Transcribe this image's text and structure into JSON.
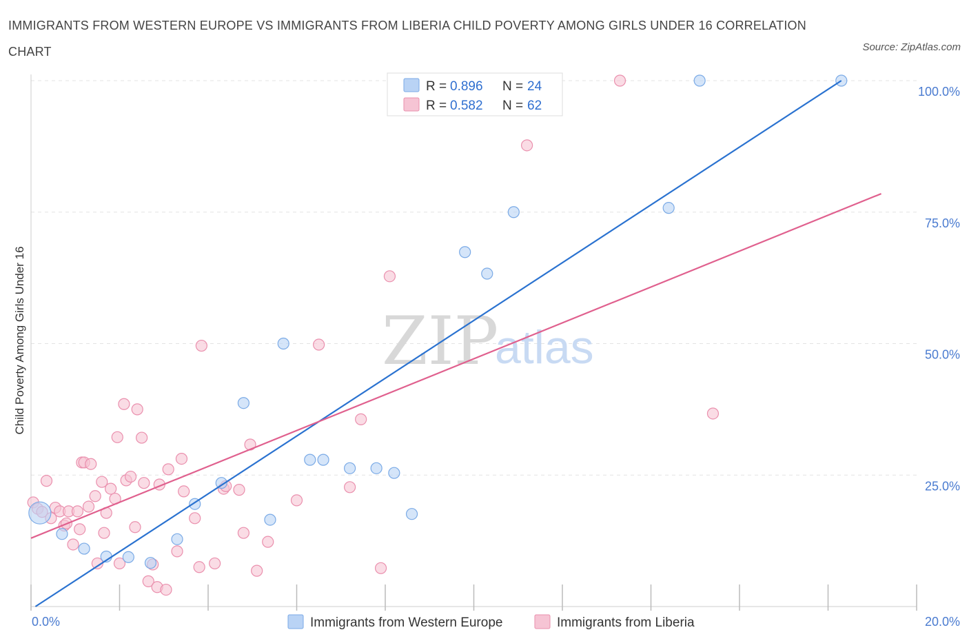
{
  "title": "IMMIGRANTS FROM WESTERN EUROPE VS IMMIGRANTS FROM LIBERIA CHILD POVERTY AMONG GIRLS UNDER 16 CORRELATION CHART",
  "source": "Source: ZipAtlas.com",
  "watermark": {
    "zip": "ZIP",
    "atlas": "atlas"
  },
  "legend_box": [
    {
      "r_label": "R =",
      "r_value": "0.896",
      "n_label": "N =",
      "n_value": "24"
    },
    {
      "r_label": "R =",
      "r_value": "0.582",
      "n_label": "N =",
      "n_value": "62"
    }
  ],
  "colors": {
    "blue_fill": "#b9d3f5",
    "blue_stroke": "#7aaae6",
    "blue_line": "#2a72d0",
    "pink_fill": "#f6c4d4",
    "pink_stroke": "#ea8fad",
    "pink_line": "#e0608e",
    "grid": "#e3e3e3",
    "tick_text": "#4a7bd0"
  },
  "chart_data": {
    "type": "scatter",
    "title": "IMMIGRANTS FROM WESTERN EUROPE VS IMMIGRANTS FROM LIBERIA CHILD POVERTY AMONG GIRLS UNDER 16 CORRELATION CHART",
    "xlabel": "",
    "ylabel": "Child Poverty Among Girls Under 16",
    "xlim": [
      0,
      20
    ],
    "ylim": [
      0,
      100
    ],
    "x_tick_labels": [
      "0.0%",
      "20.0%"
    ],
    "y_tick_labels": [
      "25.0%",
      "50.0%",
      "75.0%",
      "100.0%"
    ],
    "y_ticks": [
      25,
      50,
      75,
      100
    ],
    "grid": true,
    "legend_position": "bottom",
    "series": [
      {
        "name": "Immigrants from Western Europe",
        "color": "#7aaae6",
        "R": 0.896,
        "N": 24,
        "trend": {
          "x": [
            0.1,
            18.3
          ],
          "y": [
            0,
            100
          ]
        },
        "points": [
          {
            "x": 0.2,
            "y": 17.8,
            "big": true
          },
          {
            "x": 0.7,
            "y": 13.8
          },
          {
            "x": 1.2,
            "y": 11.0
          },
          {
            "x": 1.7,
            "y": 9.5
          },
          {
            "x": 2.2,
            "y": 9.4
          },
          {
            "x": 2.7,
            "y": 8.3
          },
          {
            "x": 3.3,
            "y": 12.8
          },
          {
            "x": 3.7,
            "y": 19.5
          },
          {
            "x": 4.3,
            "y": 23.5
          },
          {
            "x": 4.8,
            "y": 38.7
          },
          {
            "x": 5.4,
            "y": 16.5
          },
          {
            "x": 5.7,
            "y": 50.0
          },
          {
            "x": 6.3,
            "y": 27.9
          },
          {
            "x": 6.6,
            "y": 27.9
          },
          {
            "x": 7.2,
            "y": 26.3
          },
          {
            "x": 7.8,
            "y": 26.3
          },
          {
            "x": 8.2,
            "y": 25.4
          },
          {
            "x": 8.6,
            "y": 17.6
          },
          {
            "x": 9.8,
            "y": 67.4
          },
          {
            "x": 10.3,
            "y": 63.3
          },
          {
            "x": 10.9,
            "y": 75.0
          },
          {
            "x": 14.4,
            "y": 75.8
          },
          {
            "x": 15.1,
            "y": 100.0
          },
          {
            "x": 18.3,
            "y": 100.0
          }
        ]
      },
      {
        "name": "Immigrants from Liberia",
        "color": "#ea8fad",
        "R": 0.582,
        "N": 62,
        "trend": {
          "x": [
            0,
            19.2
          ],
          "y": [
            13.0,
            78.5
          ]
        },
        "points": [
          {
            "x": 0.05,
            "y": 19.8
          },
          {
            "x": 0.15,
            "y": 18.6
          },
          {
            "x": 0.25,
            "y": 18.0
          },
          {
            "x": 0.35,
            "y": 23.9
          },
          {
            "x": 0.45,
            "y": 16.8
          },
          {
            "x": 0.55,
            "y": 18.8
          },
          {
            "x": 0.65,
            "y": 18.1
          },
          {
            "x": 0.75,
            "y": 15.4
          },
          {
            "x": 0.8,
            "y": 15.8
          },
          {
            "x": 0.85,
            "y": 18.1
          },
          {
            "x": 0.95,
            "y": 11.8
          },
          {
            "x": 1.05,
            "y": 18.1
          },
          {
            "x": 1.1,
            "y": 14.7
          },
          {
            "x": 1.15,
            "y": 27.4
          },
          {
            "x": 1.2,
            "y": 27.4
          },
          {
            "x": 1.3,
            "y": 19.0
          },
          {
            "x": 1.35,
            "y": 27.1
          },
          {
            "x": 1.45,
            "y": 21.0
          },
          {
            "x": 1.5,
            "y": 8.2
          },
          {
            "x": 1.6,
            "y": 23.7
          },
          {
            "x": 1.65,
            "y": 14.0
          },
          {
            "x": 1.7,
            "y": 17.8
          },
          {
            "x": 1.8,
            "y": 22.4
          },
          {
            "x": 1.9,
            "y": 20.5
          },
          {
            "x": 1.95,
            "y": 32.2
          },
          {
            "x": 2.0,
            "y": 8.2
          },
          {
            "x": 2.1,
            "y": 38.5
          },
          {
            "x": 2.15,
            "y": 24.0
          },
          {
            "x": 2.25,
            "y": 24.7
          },
          {
            "x": 2.35,
            "y": 15.1
          },
          {
            "x": 2.4,
            "y": 37.5
          },
          {
            "x": 2.5,
            "y": 32.1
          },
          {
            "x": 2.55,
            "y": 23.5
          },
          {
            "x": 2.65,
            "y": 4.8
          },
          {
            "x": 2.75,
            "y": 8.0
          },
          {
            "x": 2.85,
            "y": 3.7
          },
          {
            "x": 2.9,
            "y": 23.2
          },
          {
            "x": 3.05,
            "y": 3.2
          },
          {
            "x": 3.1,
            "y": 26.1
          },
          {
            "x": 3.3,
            "y": 10.5
          },
          {
            "x": 3.4,
            "y": 28.1
          },
          {
            "x": 3.45,
            "y": 21.9
          },
          {
            "x": 3.7,
            "y": 16.8
          },
          {
            "x": 3.8,
            "y": 7.5
          },
          {
            "x": 3.85,
            "y": 49.6
          },
          {
            "x": 4.15,
            "y": 8.2
          },
          {
            "x": 4.35,
            "y": 22.4
          },
          {
            "x": 4.4,
            "y": 22.9
          },
          {
            "x": 4.7,
            "y": 22.2
          },
          {
            "x": 4.8,
            "y": 14.0
          },
          {
            "x": 4.95,
            "y": 30.8
          },
          {
            "x": 5.1,
            "y": 6.8
          },
          {
            "x": 5.35,
            "y": 12.3
          },
          {
            "x": 6.0,
            "y": 20.2
          },
          {
            "x": 6.5,
            "y": 49.8
          },
          {
            "x": 7.2,
            "y": 22.7
          },
          {
            "x": 7.45,
            "y": 35.6
          },
          {
            "x": 7.9,
            "y": 7.3
          },
          {
            "x": 8.1,
            "y": 62.8
          },
          {
            "x": 11.2,
            "y": 87.7
          },
          {
            "x": 13.3,
            "y": 100.0
          },
          {
            "x": 15.4,
            "y": 36.7
          }
        ]
      }
    ]
  }
}
